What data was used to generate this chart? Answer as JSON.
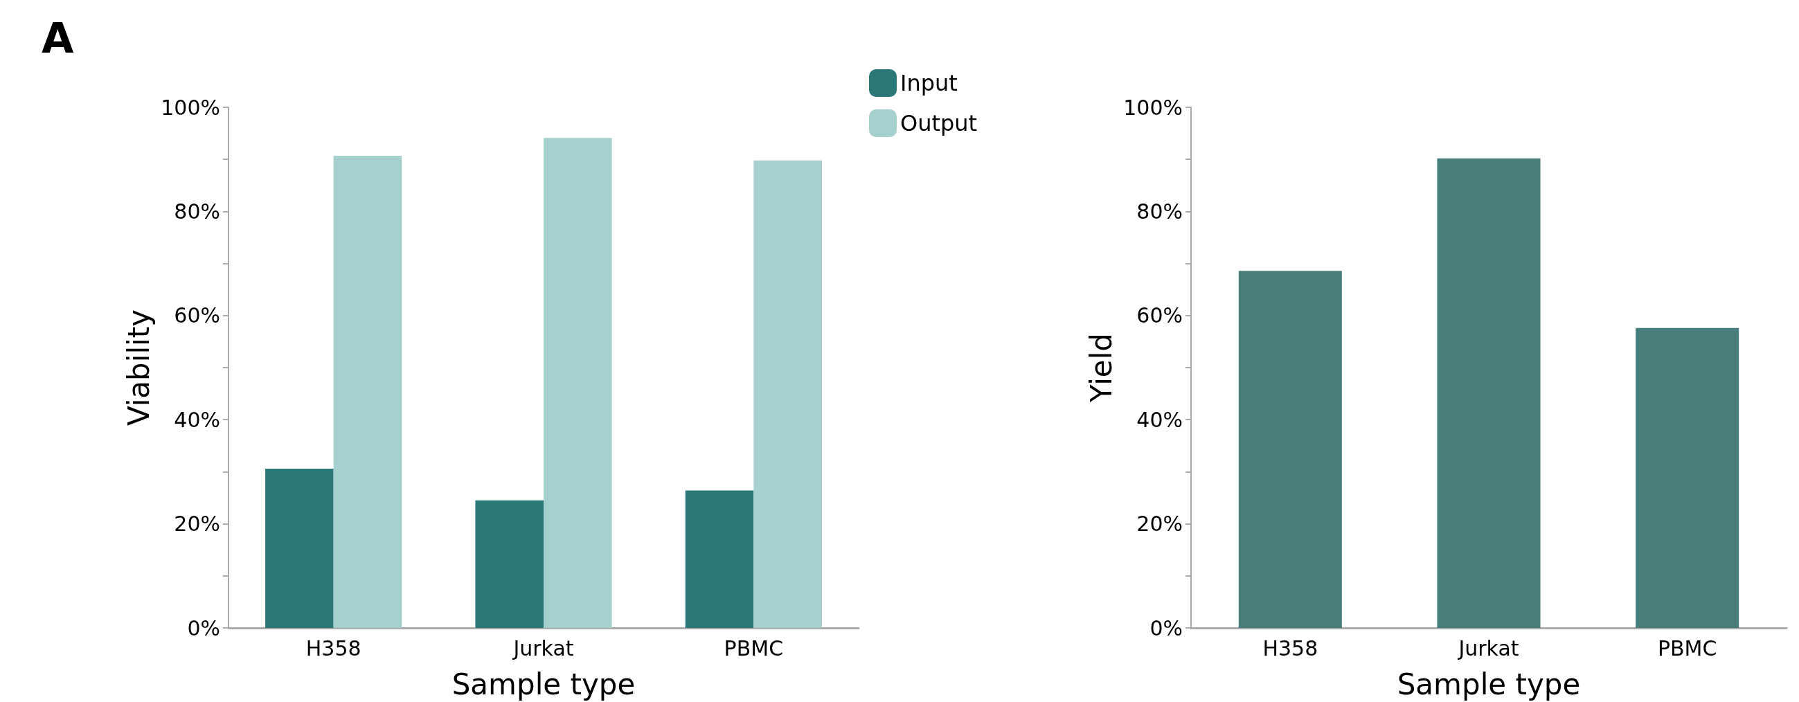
{
  "chart_data": [
    {
      "type": "bar",
      "annotations": [
        "A"
      ],
      "xlabel": "Sample type",
      "ylabel": "Viability",
      "categories": [
        "H358",
        "Jurkat",
        "PBMC"
      ],
      "series": [
        {
          "name": "Input",
          "color": "#2a7878",
          "values": [
            30.6,
            24.5,
            26.4
          ]
        },
        {
          "name": "Output",
          "color": "#a6d0ce",
          "values": [
            90.7,
            94.1,
            89.8
          ]
        }
      ],
      "ylim": [
        0,
        100
      ],
      "yticks": [
        {
          "value": 0,
          "label": "0%"
        },
        {
          "value": 10,
          "label": null
        },
        {
          "value": 20,
          "label": "20%"
        },
        {
          "value": 30,
          "label": null
        },
        {
          "value": 40,
          "label": "40%"
        },
        {
          "value": 50,
          "label": null
        },
        {
          "value": 60,
          "label": "60%"
        },
        {
          "value": 70,
          "label": null
        },
        {
          "value": 80,
          "label": "80%"
        },
        {
          "value": 90,
          "label": null
        },
        {
          "value": 100,
          "label": "100%"
        }
      ],
      "grid": false,
      "legend": "top right"
    },
    {
      "type": "bar",
      "xlabel": "Sample type",
      "ylabel": "Yield",
      "categories": [
        "H358",
        "Jurkat",
        "PBMC"
      ],
      "series": [
        {
          "color": "#477e7c",
          "values": [
            68.6,
            90.2,
            57.6
          ]
        }
      ],
      "ylim": [
        0,
        100
      ],
      "yticks": [
        {
          "value": 0,
          "label": "0%"
        },
        {
          "value": 10,
          "label": null
        },
        {
          "value": 20,
          "label": "20%"
        },
        {
          "value": 30,
          "label": null
        },
        {
          "value": 40,
          "label": "40%"
        },
        {
          "value": 50,
          "label": null
        },
        {
          "value": 60,
          "label": "60%"
        },
        {
          "value": 70,
          "label": null
        },
        {
          "value": 80,
          "label": "80%"
        },
        {
          "value": 90,
          "label": null
        },
        {
          "value": 100,
          "label": "100%"
        }
      ],
      "grid": false,
      "legend": false
    }
  ]
}
